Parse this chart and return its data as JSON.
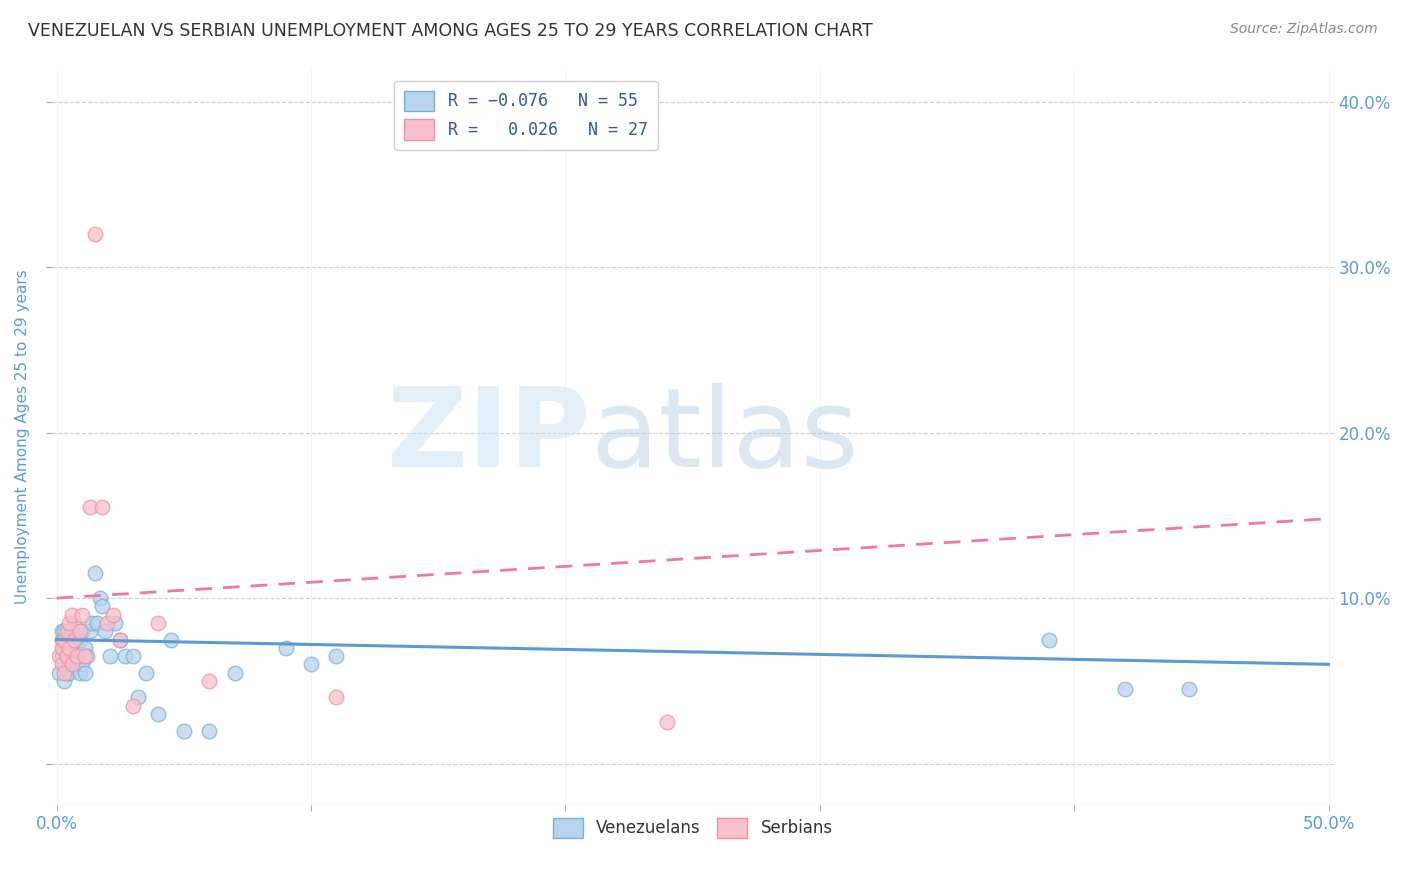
{
  "title": "VENEZUELAN VS SERBIAN UNEMPLOYMENT AMONG AGES 25 TO 29 YEARS CORRELATION CHART",
  "source": "Source: ZipAtlas.com",
  "xlabel_ticks_show": [
    "0.0%",
    "50.0%"
  ],
  "xlabel_vals": [
    0.0,
    0.1,
    0.2,
    0.3,
    0.4,
    0.5
  ],
  "xlabel_minor_vals": [
    0.05,
    0.15,
    0.25,
    0.35,
    0.45
  ],
  "ylabel": "Unemployment Among Ages 25 to 29 years",
  "ylabel_ticks": [
    "10.0%",
    "20.0%",
    "30.0%",
    "40.0%"
  ],
  "ylabel_vals": [
    0.0,
    0.1,
    0.2,
    0.3,
    0.4
  ],
  "xlim": [
    -0.002,
    0.502
  ],
  "ylim": [
    -0.025,
    0.42
  ],
  "watermark_zip": "ZIP",
  "watermark_atlas": "atlas",
  "venezuelan_scatter_x": [
    0.001,
    0.002,
    0.002,
    0.002,
    0.003,
    0.003,
    0.003,
    0.003,
    0.004,
    0.004,
    0.004,
    0.004,
    0.005,
    0.005,
    0.005,
    0.005,
    0.006,
    0.006,
    0.006,
    0.007,
    0.007,
    0.008,
    0.008,
    0.009,
    0.009,
    0.01,
    0.01,
    0.011,
    0.011,
    0.012,
    0.013,
    0.014,
    0.015,
    0.016,
    0.017,
    0.018,
    0.019,
    0.021,
    0.023,
    0.025,
    0.027,
    0.03,
    0.032,
    0.035,
    0.04,
    0.045,
    0.05,
    0.06,
    0.07,
    0.09,
    0.1,
    0.11,
    0.39,
    0.42,
    0.445
  ],
  "venezuelan_scatter_y": [
    0.055,
    0.075,
    0.065,
    0.08,
    0.06,
    0.07,
    0.05,
    0.08,
    0.065,
    0.075,
    0.055,
    0.07,
    0.06,
    0.08,
    0.055,
    0.065,
    0.07,
    0.08,
    0.06,
    0.065,
    0.085,
    0.06,
    0.07,
    0.055,
    0.075,
    0.08,
    0.06,
    0.055,
    0.07,
    0.065,
    0.08,
    0.085,
    0.115,
    0.085,
    0.1,
    0.095,
    0.08,
    0.065,
    0.085,
    0.075,
    0.065,
    0.065,
    0.04,
    0.055,
    0.03,
    0.075,
    0.02,
    0.02,
    0.055,
    0.07,
    0.06,
    0.065,
    0.075,
    0.045,
    0.045
  ],
  "serbian_scatter_x": [
    0.001,
    0.002,
    0.002,
    0.003,
    0.003,
    0.004,
    0.004,
    0.005,
    0.005,
    0.006,
    0.006,
    0.007,
    0.008,
    0.009,
    0.01,
    0.011,
    0.013,
    0.015,
    0.018,
    0.02,
    0.022,
    0.025,
    0.03,
    0.04,
    0.06,
    0.11,
    0.24
  ],
  "serbian_scatter_y": [
    0.065,
    0.06,
    0.07,
    0.055,
    0.075,
    0.065,
    0.08,
    0.07,
    0.085,
    0.06,
    0.09,
    0.075,
    0.065,
    0.08,
    0.09,
    0.065,
    0.155,
    0.32,
    0.155,
    0.085,
    0.09,
    0.075,
    0.035,
    0.085,
    0.05,
    0.04,
    0.025
  ],
  "ven_trend_x": [
    0.0,
    0.5
  ],
  "ven_trend_y": [
    0.075,
    0.06
  ],
  "ser_trend_x": [
    0.0,
    0.5
  ],
  "ser_trend_y": [
    0.1,
    0.148
  ],
  "ven_color": "#5b9bd5",
  "ser_color": "#f07898",
  "ven_scatter_facecolor": "#b8d4ed",
  "ven_scatter_edgecolor": "#7ab0d8",
  "ser_scatter_facecolor": "#f8c0cc",
  "ser_scatter_edgecolor": "#f090a8",
  "background_color": "#ffffff",
  "grid_color": "#cccccc",
  "title_color": "#333333",
  "axis_label_color": "#5b9bd5",
  "tick_color": "#5b9bd5",
  "legend_text_color": "#3355aa"
}
